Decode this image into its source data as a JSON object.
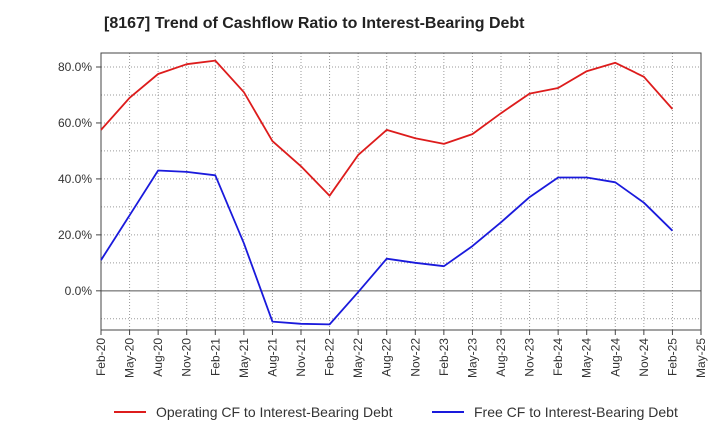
{
  "chart_data": {
    "type": "line",
    "title": "[8167]  Trend of Cashflow Ratio to Interest-Bearing Debt",
    "xlabel": "",
    "ylabel": "",
    "x": [
      "Feb-20",
      "May-20",
      "Aug-20",
      "Nov-20",
      "Feb-21",
      "May-21",
      "Aug-21",
      "Nov-21",
      "Feb-22",
      "May-22",
      "Aug-22",
      "Nov-22",
      "Feb-23",
      "May-23",
      "Aug-23",
      "Nov-23",
      "Feb-24",
      "May-24",
      "Aug-24",
      "Nov-24",
      "Feb-25",
      "May-25"
    ],
    "ylim": [
      -14,
      85
    ],
    "yticks": [
      0,
      20,
      40,
      60,
      80
    ],
    "ytick_labels": [
      "0.0%",
      "20.0%",
      "40.0%",
      "60.0%",
      "80.0%"
    ],
    "grid": true,
    "legend_position": "bottom",
    "series": [
      {
        "name": "Operating CF to Interest-Bearing Debt",
        "color": "#dd1c1c",
        "values": [
          57.5,
          69.0,
          77.5,
          81.0,
          82.3,
          71.0,
          53.5,
          44.5,
          34.0,
          48.5,
          57.5,
          54.5,
          52.5,
          56.0,
          63.5,
          70.5,
          72.5,
          78.5,
          81.5,
          76.5,
          65.0,
          null
        ]
      },
      {
        "name": "Free CF to Interest-Bearing Debt",
        "color": "#1a1adc",
        "values": [
          11.0,
          27.0,
          43.0,
          42.5,
          41.3,
          17.0,
          -11.0,
          -11.8,
          -12.0,
          -0.5,
          11.5,
          10.0,
          8.8,
          16.0,
          24.5,
          33.5,
          40.5,
          40.5,
          38.8,
          31.5,
          21.5,
          null
        ]
      }
    ]
  }
}
